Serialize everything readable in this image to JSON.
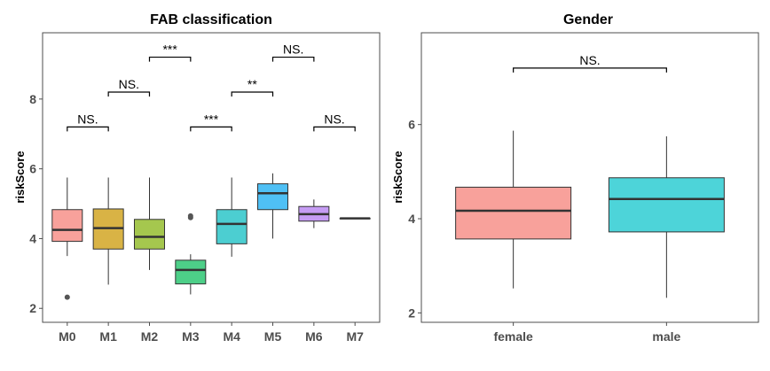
{
  "chart_data": [
    {
      "type": "box",
      "title": "FAB classification",
      "ylabel": "riskScore",
      "xlabel": "",
      "ylim": [
        1.6,
        9.9
      ],
      "yticks": [
        2,
        4,
        6,
        8
      ],
      "grid": false,
      "legend": "none",
      "categories": [
        "M0",
        "M1",
        "M2",
        "M3",
        "M4",
        "M5",
        "M6",
        "M7"
      ],
      "colors": [
        "#F8A19B",
        "#D9B345",
        "#A5C74E",
        "#4DCF88",
        "#4CCED1",
        "#4FC0F5",
        "#C69CF4",
        "#F69FD0"
      ],
      "boxes": [
        {
          "q1": 3.92,
          "median": 4.25,
          "q3": 4.83,
          "whisker_low": 3.5,
          "whisker_high": 5.75,
          "outliers": [
            2.32
          ]
        },
        {
          "q1": 3.7,
          "median": 4.3,
          "q3": 4.85,
          "whisker_low": 2.68,
          "whisker_high": 5.75,
          "outliers": []
        },
        {
          "q1": 3.7,
          "median": 4.05,
          "q3": 4.55,
          "whisker_low": 3.1,
          "whisker_high": 5.75,
          "outliers": []
        },
        {
          "q1": 2.7,
          "median": 3.1,
          "q3": 3.38,
          "whisker_low": 2.4,
          "whisker_high": 3.55,
          "outliers": [
            4.6,
            4.65
          ]
        },
        {
          "q1": 3.85,
          "median": 4.42,
          "q3": 4.83,
          "whisker_low": 3.48,
          "whisker_high": 5.75,
          "outliers": []
        },
        {
          "q1": 4.83,
          "median": 5.3,
          "q3": 5.57,
          "whisker_low": 4.0,
          "whisker_high": 5.87,
          "outliers": []
        },
        {
          "q1": 4.5,
          "median": 4.7,
          "q3": 4.92,
          "whisker_low": 4.3,
          "whisker_high": 5.12,
          "outliers": []
        },
        {
          "q1": 4.58,
          "median": 4.58,
          "q3": 4.58,
          "whisker_low": 4.58,
          "whisker_high": 4.58,
          "outliers": []
        }
      ],
      "annotations": [
        {
          "from": 0,
          "to": 1,
          "y": 7.2,
          "label": "NS."
        },
        {
          "from": 1,
          "to": 2,
          "y": 8.2,
          "label": "NS."
        },
        {
          "from": 2,
          "to": 3,
          "y": 9.2,
          "label": "***"
        },
        {
          "from": 3,
          "to": 4,
          "y": 7.2,
          "label": "***"
        },
        {
          "from": 4,
          "to": 5,
          "y": 8.2,
          "label": "**"
        },
        {
          "from": 5,
          "to": 6,
          "y": 9.2,
          "label": "NS."
        },
        {
          "from": 6,
          "to": 7,
          "y": 7.2,
          "label": "NS."
        }
      ]
    },
    {
      "type": "box",
      "title": "Gender",
      "ylabel": "riskScore",
      "xlabel": "",
      "ylim": [
        1.8,
        7.95
      ],
      "yticks": [
        2,
        4,
        6
      ],
      "grid": false,
      "legend": "none",
      "categories": [
        "female",
        "male"
      ],
      "colors": [
        "#F8A19B",
        "#4DD4D9"
      ],
      "boxes": [
        {
          "q1": 3.57,
          "median": 4.17,
          "q3": 4.67,
          "whisker_low": 2.52,
          "whisker_high": 5.87,
          "outliers": []
        },
        {
          "q1": 3.72,
          "median": 4.42,
          "q3": 4.87,
          "whisker_low": 2.32,
          "whisker_high": 5.75,
          "outliers": []
        }
      ],
      "annotations": [
        {
          "from": 0,
          "to": 1,
          "y": 7.2,
          "label": "NS."
        }
      ]
    }
  ]
}
